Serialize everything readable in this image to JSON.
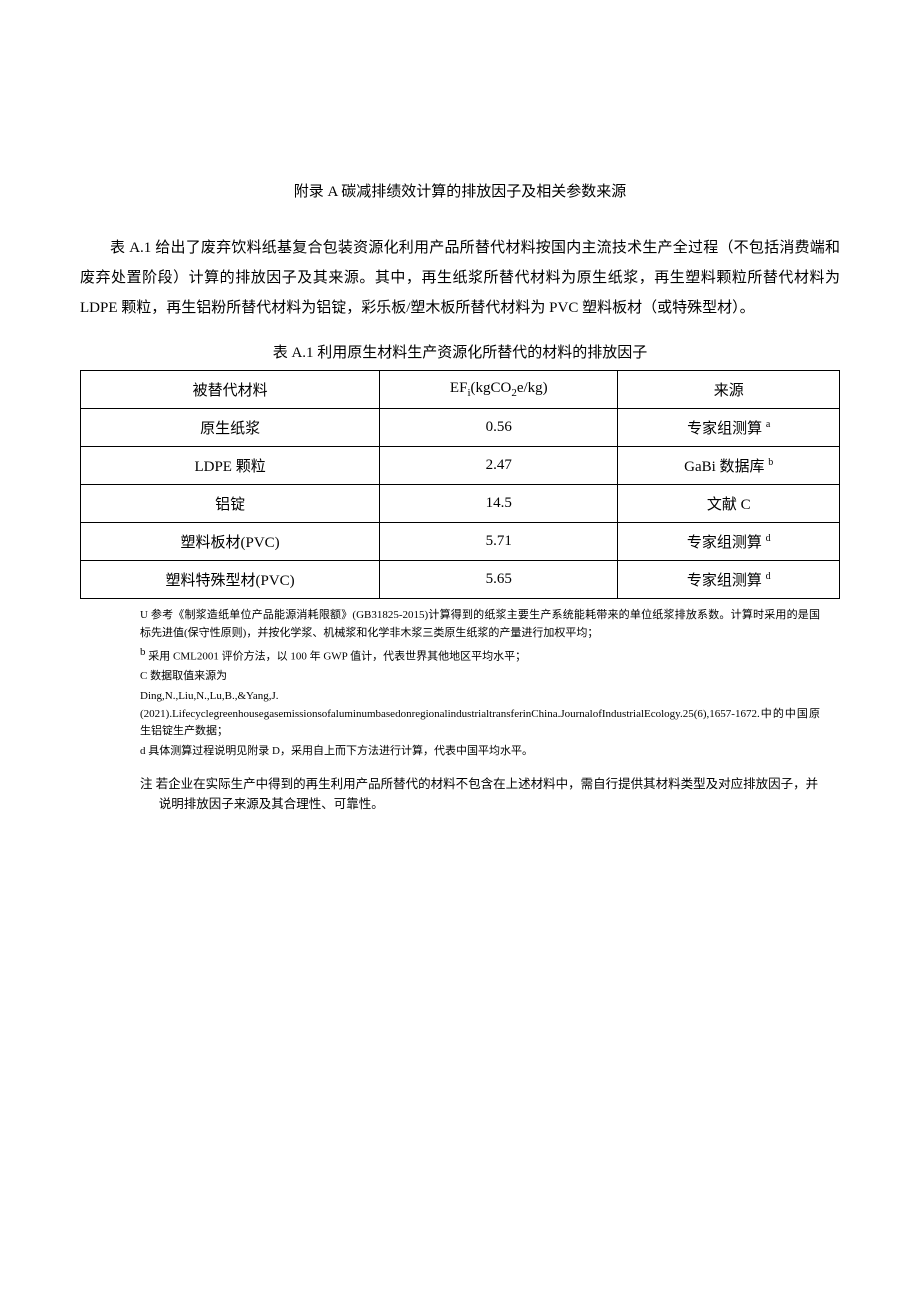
{
  "title": "附录 A 碳减排绩效计算的排放因子及相关参数来源",
  "intro": "表 A.1 给出了废弃饮料纸基复合包装资源化利用产品所替代材料按国内主流技术生产全过程（不包括消费端和废弃处置阶段）计算的排放因子及其来源。其中，再生纸浆所替代材料为原生纸浆，再生塑料颗粒所替代材料为 LDPE 颗粒，再生铝粉所替代材料为铝锭，彩乐板/塑木板所替代材料为 PVC 塑料板材（或特殊型材）。",
  "table_caption": "表 A.1 利用原生材料生产资源化所替代的材料的排放因子",
  "table": {
    "columns": [
      "被替代材料",
      "EFᵢ(kgCO₂e/kg)",
      "来源"
    ],
    "col_header_0": "被替代材料",
    "col_header_1_prefix": "EF",
    "col_header_1_sub": "i",
    "col_header_1_middle": "(kgCO",
    "col_header_1_sub2": "2",
    "col_header_1_suffix": "e/kg)",
    "col_header_2": "来源",
    "rows": [
      {
        "material": "原生纸浆",
        "ef": "0.56",
        "source": "专家组测算",
        "sup": "a"
      },
      {
        "material": "LDPE 颗粒",
        "ef": "2.47",
        "source": "GaBi 数据库",
        "sup": "b"
      },
      {
        "material": "铝锭",
        "ef": "14.5",
        "source": "文献 C",
        "sup": ""
      },
      {
        "material": "塑料板材(PVC)",
        "ef": "5.71",
        "source": "专家组测算",
        "sup": "d"
      },
      {
        "material": "塑料特殊型材(PVC)",
        "ef": "5.65",
        "source": "专家组测算",
        "sup": "d"
      }
    ]
  },
  "footnotes": {
    "a_label": "U",
    "a": "参考《制浆造纸单位产品能源消耗限额》(GB31825-2015)计算得到的纸浆主要生产系统能耗带来的单位纸浆排放系数。计算时采用的是国标先进值(保守性原则)，并按化学浆、机械浆和化学非木浆三类原生纸浆的产量进行加权平均；",
    "b_label": "b",
    "b": "采用 CML2001 评价方法，以 100 年 GWP 值计，代表世界其他地区平均水平；",
    "c_label": "C",
    "c_line1": "数据取值来源为",
    "c_line2": "Ding,N.,Liu,N.,Lu,B.,&Yang,J.(2021).LifecyclegreenhousegasemissionsofaluminumbasedonregionalindustrialtransferinChina.JournalofIndustrialEcology.25(6),1657-1672.中的中国原生铝锭生产数据；",
    "d_label": "d",
    "d": "具体测算过程说明见附录 D，采用自上而下方法进行计算，代表中国平均水平。"
  },
  "note_label": "注",
  "note": "若企业在实际生产中得到的再生利用产品所替代的材料不包含在上述材料中，需自行提供其材料类型及对应排放因子，并说明排放因子来源及其合理性、可靠性。",
  "colors": {
    "background": "#ffffff",
    "text": "#000000",
    "border": "#000000"
  }
}
